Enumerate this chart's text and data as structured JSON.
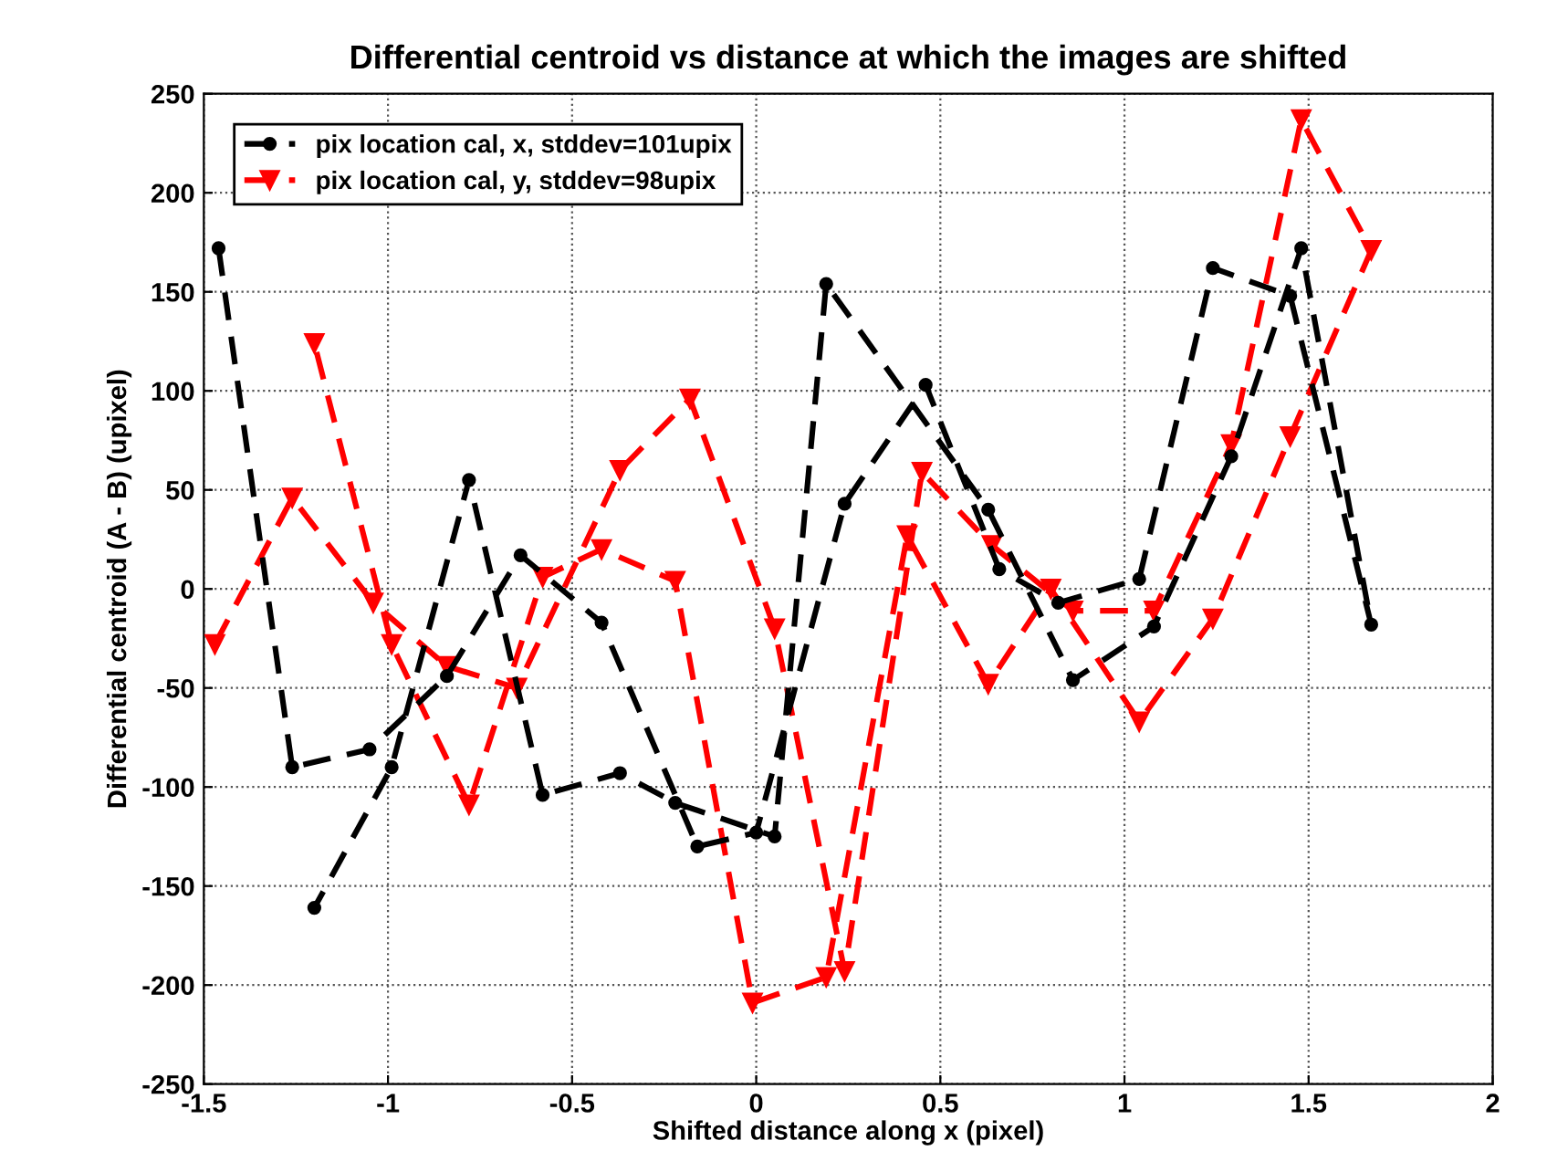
{
  "chart_data": {
    "type": "line",
    "title": "Differential centroid vs distance at which the images are shifted",
    "xlabel": "Shifted distance along x (pixel)",
    "ylabel": "Differential centroid (A - B) (upixel)",
    "xlim": [
      -1.5,
      2
    ],
    "xticks": [
      -1.5,
      -1,
      -0.5,
      0,
      0.5,
      1,
      1.5,
      2
    ],
    "ylim": [
      -250,
      250
    ],
    "yticks": [
      -250,
      -200,
      -150,
      -100,
      -50,
      0,
      50,
      100,
      150,
      200,
      250
    ],
    "grid": true,
    "legend": "top left",
    "line_style": "dashed",
    "series": [
      {
        "name": "pix location cal, x, stddev=101upix",
        "color": "#000000",
        "marker": "circle",
        "x": [
          -1.46,
          -1.26,
          -1.05,
          -0.84,
          -0.64,
          -0.42,
          -0.16,
          0.0,
          0.24,
          0.46,
          0.66,
          0.82,
          1.04,
          1.24,
          1.45,
          1.67,
          1.48,
          1.29,
          1.08,
          0.86,
          0.63,
          0.19,
          0.05,
          -0.22,
          -0.37,
          -0.58,
          -0.78,
          -0.99,
          -1.2
        ],
        "values": [
          172,
          -90,
          -81,
          -44,
          17,
          -17,
          -130,
          -123,
          43,
          103,
          10,
          -7,
          5,
          162,
          148,
          -18,
          172,
          67,
          -19,
          -46,
          40,
          154,
          -125,
          -108,
          -93,
          -104,
          55,
          -90,
          -161
        ]
      },
      {
        "name": "pix location cal, y, stddev=98upix",
        "color": "#ff0000",
        "marker": "triangle",
        "x": [
          -1.47,
          -1.26,
          -1.04,
          -0.84,
          -0.65,
          -0.37,
          -0.18,
          0.05,
          0.24,
          0.45,
          0.64,
          0.86,
          1.08,
          1.29,
          1.48,
          1.67,
          1.45,
          1.24,
          1.04,
          0.8,
          0.63,
          0.41,
          0.19,
          -0.01,
          -0.22,
          -0.42,
          -0.58,
          -0.78,
          -0.99,
          -1.2
        ],
        "values": [
          -28,
          46,
          -7,
          -39,
          -50,
          60,
          96,
          -20,
          -193,
          59,
          22,
          -11,
          -11,
          73,
          237,
          171,
          77,
          -15,
          -67,
          0,
          -48,
          27,
          -196,
          -209,
          4,
          20,
          6,
          -109,
          -28,
          124
        ]
      }
    ]
  }
}
